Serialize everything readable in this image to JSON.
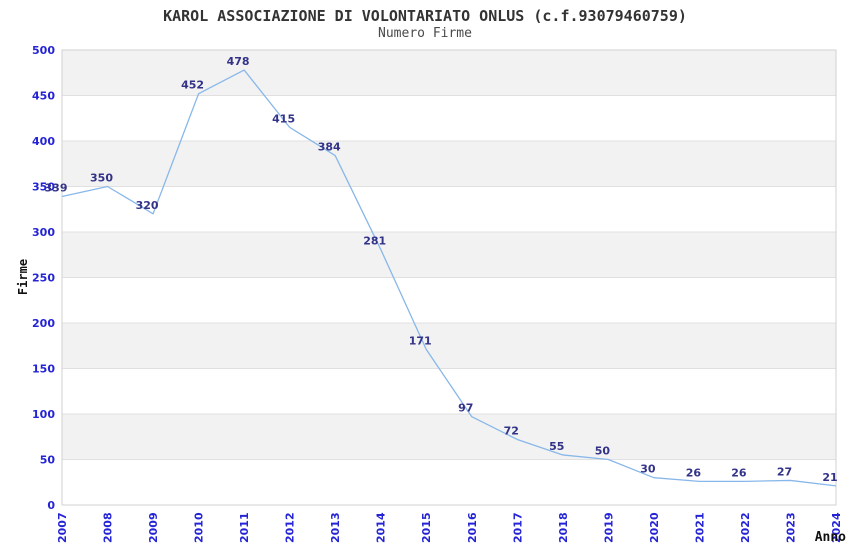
{
  "chart_data": {
    "type": "line",
    "title": "KAROL ASSOCIAZIONE DI VOLONTARIATO ONLUS (c.f.93079460759)",
    "subtitle": "Numero Firme",
    "xlabel": "Anno",
    "ylabel": "Firme",
    "categories": [
      "2007",
      "2008",
      "2009",
      "2010",
      "2011",
      "2012",
      "2013",
      "2014",
      "2015",
      "2016",
      "2017",
      "2018",
      "2019",
      "2020",
      "2021",
      "2022",
      "2023",
      "2024"
    ],
    "values": [
      339,
      350,
      320,
      452,
      478,
      415,
      384,
      281,
      171,
      97,
      72,
      55,
      50,
      30,
      26,
      26,
      27,
      21
    ],
    "ylim": [
      0,
      500
    ],
    "ytick_step": 50,
    "yticks": [
      0,
      50,
      100,
      150,
      200,
      250,
      300,
      350,
      400,
      450,
      500
    ],
    "grid": true,
    "legend_position": "none",
    "point_labels_visible": true,
    "colors": {
      "line": "#88b7ea",
      "point_label": "#333388",
      "tick_label": "#2424d6",
      "band": "#f2f2f2",
      "band_alt": "#ffffff",
      "grid_line": "#e0e0e0",
      "plot_border": "#d2d2d2",
      "title": "#333333",
      "subtitle": "#4a4a4a",
      "axis_title": "#111111",
      "background": "#ffffff"
    }
  }
}
